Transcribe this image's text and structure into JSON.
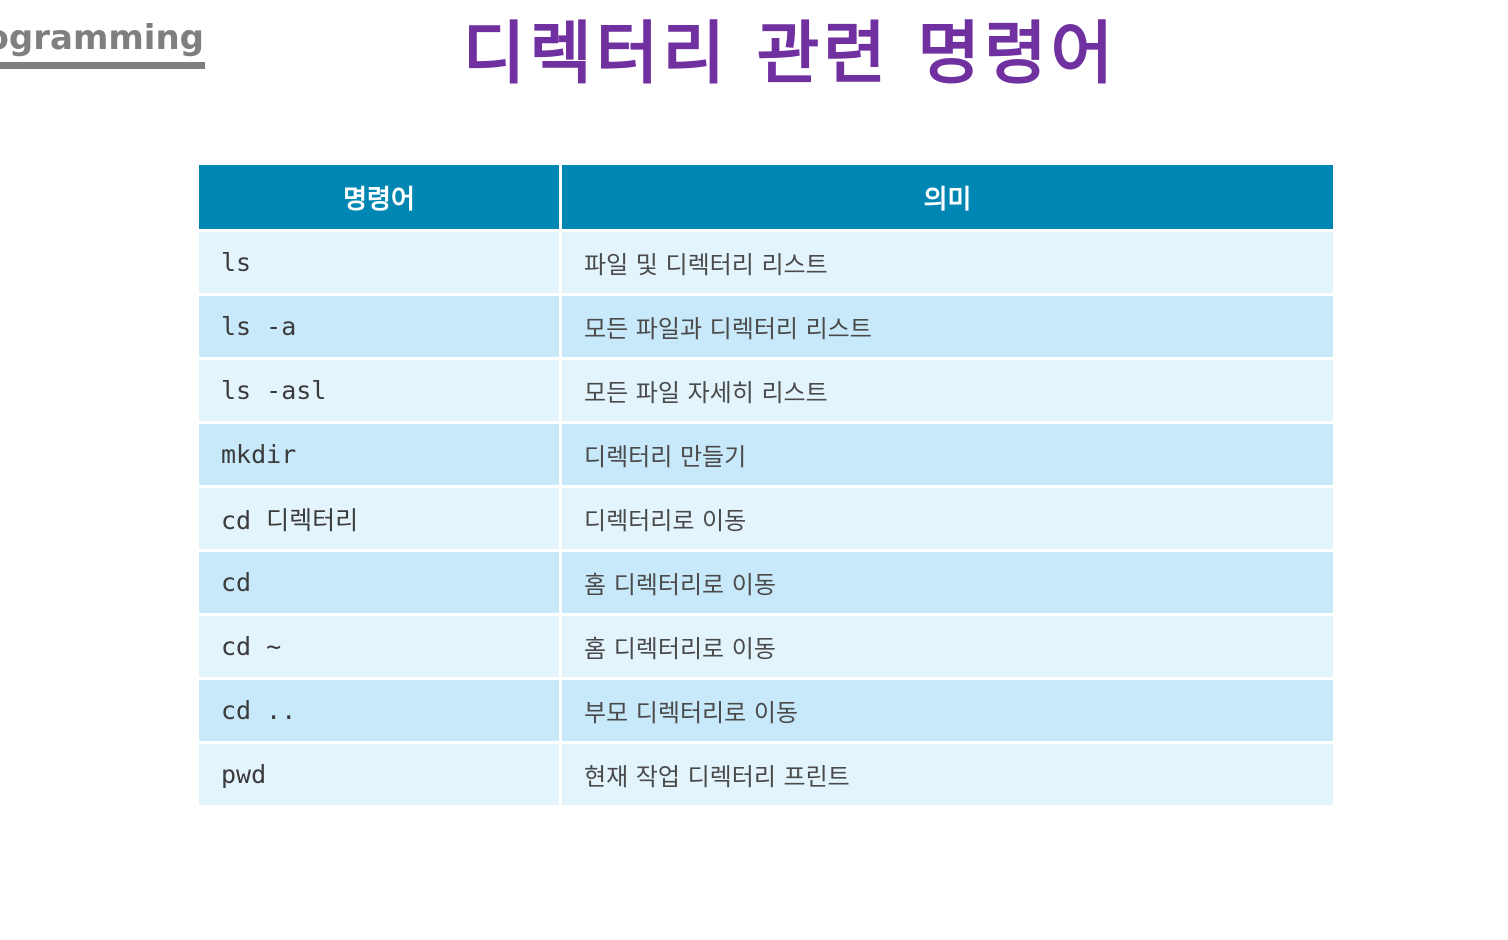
{
  "header": {
    "corner_label": "ogramming",
    "title": "디렉터리 관련 명령어"
  },
  "table": {
    "columns": [
      "명령어",
      "의미"
    ],
    "rows": [
      {
        "command": "ls",
        "meaning": "파일 및 디렉터리 리스트"
      },
      {
        "command": "ls -a",
        "meaning": "모든 파일과 디렉터리 리스트"
      },
      {
        "command": "ls -asl",
        "meaning": "모든 파일 자세히 리스트"
      },
      {
        "command": "mkdir",
        "meaning": "디렉터리 만들기"
      },
      {
        "command": "cd 디렉터리",
        "meaning": "디렉터리로 이동"
      },
      {
        "command": "cd",
        "meaning": "홈 디렉터리로 이동"
      },
      {
        "command": "cd ~",
        "meaning": "홈 디렉터리로 이동"
      },
      {
        "command": "cd ..",
        "meaning": "부모 디렉터리로 이동"
      },
      {
        "command": "pwd",
        "meaning": "현재 작업 디렉터리 프린트"
      }
    ]
  },
  "colors": {
    "title": "#7030a0",
    "header_bg": "#0086b3",
    "row_light": "#e3f4fd",
    "row_dark": "#c8e9fa",
    "corner_gray": "#7f7f7f"
  }
}
